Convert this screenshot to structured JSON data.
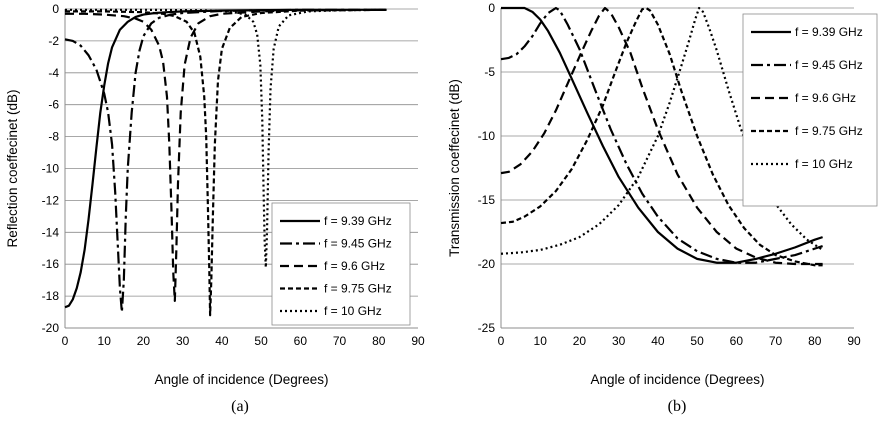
{
  "chart_data": [
    {
      "type": "line",
      "panel_label": "(a)",
      "xlabel": "Angle of incidence (Degrees)",
      "ylabel": "Reflection coeffecinet (dB)",
      "xlim": [
        0,
        90
      ],
      "ylim": [
        -20,
        0
      ],
      "xticks": [
        0,
        10,
        20,
        30,
        40,
        50,
        60,
        70,
        80,
        90
      ],
      "yticks": [
        0,
        -2,
        -4,
        -6,
        -8,
        -10,
        -12,
        -14,
        -16,
        -18,
        -20
      ],
      "grid": "horizontal",
      "legend_position": "bottom-right",
      "series": [
        {
          "name": "f = 9.39 GHz",
          "dash": "solid",
          "points": [
            [
              0,
              -18.7
            ],
            [
              1,
              -18.6
            ],
            [
              2,
              -18.2
            ],
            [
              3,
              -17.5
            ],
            [
              4,
              -16.5
            ],
            [
              5,
              -15.1
            ],
            [
              6,
              -13.2
            ],
            [
              7,
              -11
            ],
            [
              8,
              -8.7
            ],
            [
              9,
              -6.5
            ],
            [
              10,
              -4.8
            ],
            [
              11,
              -3.4
            ],
            [
              12,
              -2.4
            ],
            [
              14,
              -1.3
            ],
            [
              16,
              -0.8
            ],
            [
              18,
              -0.5
            ],
            [
              20,
              -0.35
            ],
            [
              23,
              -0.25
            ],
            [
              26,
              -0.2
            ],
            [
              30,
              -0.15
            ],
            [
              40,
              -0.1
            ],
            [
              60,
              -0.05
            ],
            [
              82,
              -0.05
            ]
          ]
        },
        {
          "name": "f = 9.45 GHz",
          "dash": "dash-dot",
          "points": [
            [
              0,
              -1.9
            ],
            [
              2,
              -2
            ],
            [
              4,
              -2.3
            ],
            [
              6,
              -2.9
            ],
            [
              8,
              -3.8
            ],
            [
              10,
              -5.3
            ],
            [
              11,
              -6.5
            ],
            [
              12,
              -8.5
            ],
            [
              12.8,
              -11.5
            ],
            [
              13.5,
              -15
            ],
            [
              14,
              -17.5
            ],
            [
              14.5,
              -19
            ],
            [
              15,
              -17
            ],
            [
              15.5,
              -13
            ],
            [
              16,
              -10
            ],
            [
              17,
              -6.5
            ],
            [
              18,
              -4
            ],
            [
              19,
              -2.6
            ],
            [
              20,
              -1.7
            ],
            [
              22,
              -0.9
            ],
            [
              24,
              -0.55
            ],
            [
              27,
              -0.35
            ],
            [
              30,
              -0.25
            ],
            [
              40,
              -0.12
            ],
            [
              60,
              -0.05
            ],
            [
              82,
              -0.05
            ]
          ]
        },
        {
          "name": "f = 9.6 GHz",
          "dash": "dashed",
          "points": [
            [
              0,
              -0.3
            ],
            [
              5,
              -0.3
            ],
            [
              10,
              -0.35
            ],
            [
              15,
              -0.45
            ],
            [
              18,
              -0.6
            ],
            [
              20,
              -0.8
            ],
            [
              22,
              -1.3
            ],
            [
              24,
              -2.3
            ],
            [
              25,
              -3.3
            ],
            [
              26,
              -5.5
            ],
            [
              26.6,
              -8.5
            ],
            [
              27.2,
              -13
            ],
            [
              27.6,
              -16.5
            ],
            [
              28,
              -18.3
            ],
            [
              28.4,
              -15
            ],
            [
              28.8,
              -11
            ],
            [
              29.5,
              -6.5
            ],
            [
              30.5,
              -3.5
            ],
            [
              32,
              -1.8
            ],
            [
              34,
              -0.9
            ],
            [
              37,
              -0.45
            ],
            [
              40,
              -0.3
            ],
            [
              50,
              -0.15
            ],
            [
              60,
              -0.08
            ],
            [
              82,
              -0.05
            ]
          ]
        },
        {
          "name": "f = 9.75 GHz",
          "dash": "short-dash",
          "points": [
            [
              0,
              -0.15
            ],
            [
              10,
              -0.15
            ],
            [
              20,
              -0.2
            ],
            [
              25,
              -0.3
            ],
            [
              28,
              -0.45
            ],
            [
              31,
              -0.8
            ],
            [
              33,
              -1.5
            ],
            [
              34.5,
              -3
            ],
            [
              35.5,
              -5.5
            ],
            [
              36,
              -8
            ],
            [
              36.4,
              -12
            ],
            [
              36.8,
              -16.5
            ],
            [
              37,
              -19.2
            ],
            [
              37.3,
              -17
            ],
            [
              37.7,
              -13
            ],
            [
              38.2,
              -8.5
            ],
            [
              39,
              -4.5
            ],
            [
              40,
              -2.5
            ],
            [
              42,
              -1.2
            ],
            [
              45,
              -0.5
            ],
            [
              50,
              -0.25
            ],
            [
              60,
              -0.1
            ],
            [
              82,
              -0.05
            ]
          ]
        },
        {
          "name": "f = 10 GHz",
          "dash": "dotted",
          "points": [
            [
              0,
              -0.05
            ],
            [
              20,
              -0.05
            ],
            [
              35,
              -0.08
            ],
            [
              42,
              -0.15
            ],
            [
              46,
              -0.35
            ],
            [
              48,
              -0.8
            ],
            [
              49,
              -1.6
            ],
            [
              49.8,
              -3.5
            ],
            [
              50.3,
              -7
            ],
            [
              50.6,
              -11
            ],
            [
              50.9,
              -14.5
            ],
            [
              51.2,
              -16.2
            ],
            [
              51.5,
              -14
            ],
            [
              51.9,
              -9
            ],
            [
              52.4,
              -5
            ],
            [
              53.2,
              -2.5
            ],
            [
              54.5,
              -1.1
            ],
            [
              57,
              -0.4
            ],
            [
              62,
              -0.15
            ],
            [
              70,
              -0.08
            ],
            [
              82,
              -0.05
            ]
          ]
        }
      ]
    },
    {
      "type": "line",
      "panel_label": "(b)",
      "xlabel": "Angle of incidence (Degrees)",
      "ylabel": "Transmission coeffecinet (dB)",
      "xlim": [
        0,
        90
      ],
      "ylim": [
        -25,
        0
      ],
      "xticks": [
        0,
        10,
        20,
        30,
        40,
        50,
        60,
        70,
        80,
        90
      ],
      "yticks": [
        0,
        -5,
        -10,
        -15,
        -20,
        -25
      ],
      "grid": "horizontal",
      "legend_position": "top-right",
      "series": [
        {
          "name": "f = 9.39 GHz",
          "dash": "solid",
          "points": [
            [
              0,
              0
            ],
            [
              6,
              0
            ],
            [
              8,
              -0.3
            ],
            [
              10,
              -0.9
            ],
            [
              12,
              -1.8
            ],
            [
              15,
              -3.5
            ],
            [
              18,
              -5.5
            ],
            [
              22,
              -8.2
            ],
            [
              26,
              -10.8
            ],
            [
              30,
              -13.2
            ],
            [
              35,
              -15.6
            ],
            [
              40,
              -17.5
            ],
            [
              45,
              -18.8
            ],
            [
              50,
              -19.6
            ],
            [
              55,
              -19.9
            ],
            [
              60,
              -19.9
            ],
            [
              65,
              -19.6
            ],
            [
              70,
              -19.2
            ],
            [
              75,
              -18.7
            ],
            [
              80,
              -18.1
            ],
            [
              82,
              -17.9
            ]
          ]
        },
        {
          "name": "f = 9.45 GHz",
          "dash": "dash-dot",
          "points": [
            [
              0,
              -4
            ],
            [
              2,
              -3.9
            ],
            [
              4,
              -3.6
            ],
            [
              6,
              -3
            ],
            [
              8,
              -2.2
            ],
            [
              10,
              -1.2
            ],
            [
              12,
              -0.4
            ],
            [
              14,
              0
            ],
            [
              15,
              -0.2
            ],
            [
              17,
              -1.3
            ],
            [
              20,
              -3.2
            ],
            [
              24,
              -6.4
            ],
            [
              28,
              -9.5
            ],
            [
              32,
              -12.2
            ],
            [
              36,
              -14.5
            ],
            [
              40,
              -16.3
            ],
            [
              45,
              -18
            ],
            [
              50,
              -19
            ],
            [
              55,
              -19.6
            ],
            [
              60,
              -19.9
            ],
            [
              65,
              -19.9
            ],
            [
              70,
              -19.6
            ],
            [
              75,
              -19.3
            ],
            [
              80,
              -18.8
            ],
            [
              82,
              -18.6
            ]
          ]
        },
        {
          "name": "f = 9.6 GHz",
          "dash": "dashed",
          "points": [
            [
              0,
              -12.9
            ],
            [
              2,
              -12.8
            ],
            [
              5,
              -12.2
            ],
            [
              8,
              -11.2
            ],
            [
              11,
              -9.8
            ],
            [
              14,
              -8
            ],
            [
              17,
              -5.9
            ],
            [
              20,
              -3.8
            ],
            [
              23,
              -1.8
            ],
            [
              25,
              -0.6
            ],
            [
              26.5,
              0
            ],
            [
              28,
              -0.4
            ],
            [
              30,
              -1.5
            ],
            [
              33,
              -3.5
            ],
            [
              36,
              -6.2
            ],
            [
              40,
              -9.5
            ],
            [
              45,
              -13
            ],
            [
              50,
              -15.6
            ],
            [
              55,
              -17.5
            ],
            [
              60,
              -18.8
            ],
            [
              65,
              -19.5
            ],
            [
              70,
              -19.9
            ],
            [
              75,
              -20
            ],
            [
              80,
              -20
            ],
            [
              82,
              -20
            ]
          ]
        },
        {
          "name": "f = 9.75 GHz",
          "dash": "short-dash",
          "points": [
            [
              0,
              -16.8
            ],
            [
              3,
              -16.7
            ],
            [
              6,
              -16.3
            ],
            [
              10,
              -15.5
            ],
            [
              14,
              -14.3
            ],
            [
              18,
              -12.6
            ],
            [
              22,
              -10.3
            ],
            [
              26,
              -7.6
            ],
            [
              29,
              -5.1
            ],
            [
              32,
              -2.7
            ],
            [
              34.5,
              -1
            ],
            [
              36,
              -0.1
            ],
            [
              37,
              0
            ],
            [
              38,
              -0.2
            ],
            [
              40,
              -1.3
            ],
            [
              43,
              -3.6
            ],
            [
              46,
              -6.5
            ],
            [
              50,
              -10
            ],
            [
              54,
              -13
            ],
            [
              58,
              -15.4
            ],
            [
              62,
              -17.2
            ],
            [
              66,
              -18.5
            ],
            [
              70,
              -19.3
            ],
            [
              75,
              -19.8
            ],
            [
              80,
              -20.1
            ],
            [
              82,
              -20.1
            ]
          ]
        },
        {
          "name": "f = 10 GHz",
          "dash": "dotted",
          "points": [
            [
              0,
              -19.2
            ],
            [
              5,
              -19.1
            ],
            [
              10,
              -18.9
            ],
            [
              15,
              -18.5
            ],
            [
              20,
              -17.9
            ],
            [
              25,
              -16.9
            ],
            [
              30,
              -15.4
            ],
            [
              35,
              -13.2
            ],
            [
              40,
              -10
            ],
            [
              43,
              -7.4
            ],
            [
              46,
              -4.5
            ],
            [
              48,
              -2.5
            ],
            [
              49.5,
              -0.9
            ],
            [
              50.5,
              0
            ],
            [
              51.5,
              -0.3
            ],
            [
              53,
              -1.5
            ],
            [
              55,
              -3.3
            ],
            [
              58,
              -6.4
            ],
            [
              61,
              -9.3
            ],
            [
              64,
              -11.8
            ],
            [
              67,
              -13.8
            ],
            [
              70,
              -15.3
            ],
            [
              74,
              -16.9
            ],
            [
              78,
              -18.1
            ],
            [
              82,
              -18.9
            ]
          ]
        }
      ]
    }
  ]
}
